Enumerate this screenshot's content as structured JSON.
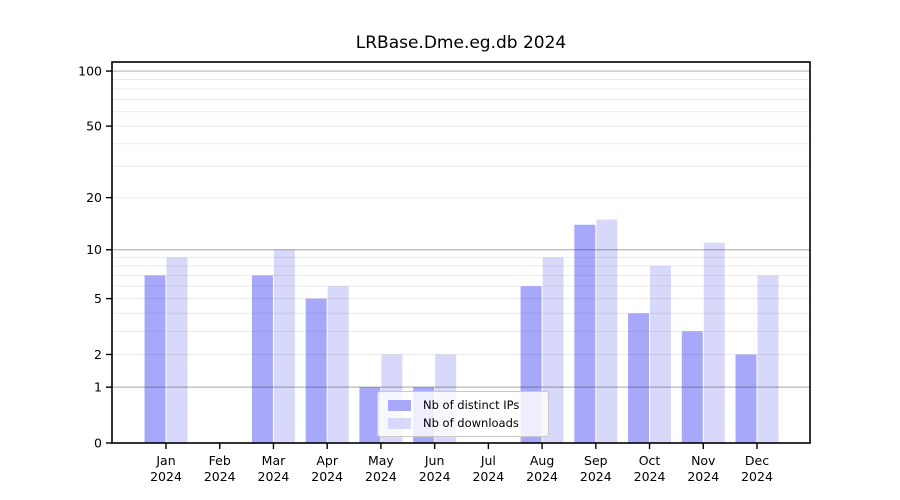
{
  "title": "LRBase.Dme.eg.db 2024",
  "chart_data": {
    "type": "bar",
    "title": "LRBase.Dme.eg.db 2024",
    "scale": "log1p",
    "grid": true,
    "categories": [
      "Jan",
      "Feb",
      "Mar",
      "Apr",
      "May",
      "Jun",
      "Jul",
      "Aug",
      "Sep",
      "Oct",
      "Nov",
      "Dec"
    ],
    "category_year": "2024",
    "series": [
      {
        "name": "Nb of distinct IPs",
        "color": "#a8a8fa",
        "values": [
          7,
          0,
          7,
          5,
          1,
          1,
          0,
          6,
          14,
          4,
          3,
          2
        ]
      },
      {
        "name": "Nb of downloads",
        "color": "#d8d8fa",
        "values": [
          9,
          0,
          10,
          6,
          2,
          2,
          0,
          9,
          15,
          8,
          11,
          7
        ]
      }
    ],
    "yticks": [
      0,
      1,
      2,
      5,
      10,
      20,
      50,
      100
    ],
    "major_gridlines": [
      1,
      10,
      100
    ],
    "minor_gridlines": [
      2,
      3,
      4,
      5,
      6,
      7,
      8,
      9,
      20,
      30,
      40,
      50,
      60,
      70,
      80,
      90
    ],
    "ylim": [
      0,
      112
    ],
    "xlabel": "",
    "ylabel": "",
    "legend_position": "lower center"
  },
  "colors": {
    "frame": "#000000",
    "major_grid": "rgba(50,50,50,0.35)",
    "minor_grid": "rgba(60,60,60,0.10)",
    "text": "#000000"
  }
}
